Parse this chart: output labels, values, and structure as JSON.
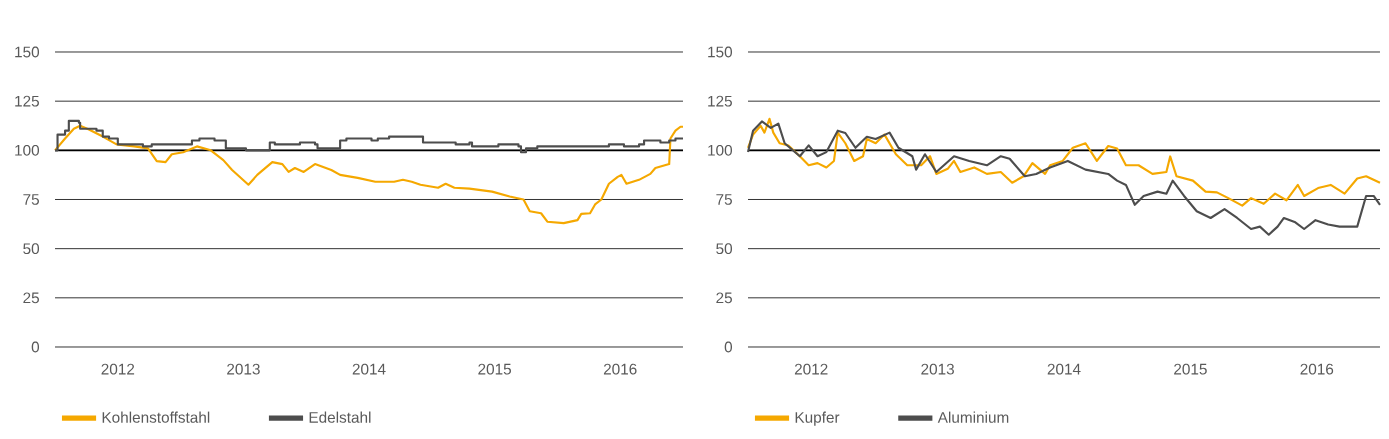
{
  "chart_data": [
    {
      "type": "line",
      "xlim": [
        2012,
        2017
      ],
      "ylim": [
        0,
        150
      ],
      "yticks": [
        0,
        25,
        50,
        75,
        100,
        125,
        150
      ],
      "xticks": [
        {
          "value": 2012.5,
          "label": "2012"
        },
        {
          "value": 2013.5,
          "label": "2013"
        },
        {
          "value": 2014.5,
          "label": "2014"
        },
        {
          "value": 2015.5,
          "label": "2015"
        },
        {
          "value": 2016.5,
          "label": "2016"
        }
      ],
      "grid": "y",
      "legend": "bottom left",
      "ref_lines": [
        {
          "axis": "y",
          "value": 100,
          "color": "#000000"
        }
      ],
      "series": [
        {
          "name": "Kohlenstoffstahl",
          "color": "#f5a800",
          "x": [
            2012.0,
            2012.08,
            2012.15,
            2012.2,
            2012.27,
            2012.38,
            2012.49,
            2012.63,
            2012.74,
            2012.81,
            2012.88,
            2012.93,
            2013.02,
            2013.13,
            2013.24,
            2013.34,
            2013.41,
            2013.54,
            2013.61,
            2013.73,
            2013.81,
            2013.86,
            2013.91,
            2013.98,
            2014.07,
            2014.2,
            2014.27,
            2014.41,
            2014.55,
            2014.7,
            2014.77,
            2014.84,
            2014.91,
            2015.05,
            2015.11,
            2015.18,
            2015.3,
            2015.48,
            2015.62,
            2015.73,
            2015.78,
            2015.87,
            2015.92,
            2016.05,
            2016.16,
            2016.19,
            2016.26,
            2016.3,
            2016.35,
            2016.41,
            2016.48,
            2016.51,
            2016.55,
            2016.65,
            2016.74,
            2016.78,
            2016.89,
            2016.9,
            2016.94,
            2016.98,
            2017.0
          ],
          "values": [
            100,
            106,
            111,
            112.5,
            110.6,
            107,
            103,
            102,
            101,
            94.5,
            94,
            98,
            99,
            102,
            100,
            95,
            90,
            82.5,
            87.5,
            94,
            93,
            89,
            91,
            89,
            93,
            90,
            87.5,
            86,
            84,
            84,
            85,
            84,
            82.5,
            81,
            83,
            81,
            80.5,
            79,
            76.5,
            75,
            69,
            68,
            63.7,
            63,
            64.5,
            67.7,
            68,
            72.5,
            75,
            83,
            86.5,
            87.5,
            83,
            85,
            88,
            91,
            93,
            106,
            110,
            112,
            112
          ]
        },
        {
          "name": "Edelstahl",
          "type": "step",
          "color": "#4d4d4d",
          "x": [
            2012.0,
            2012.02,
            2012.08,
            2012.11,
            2012.19,
            2012.2,
            2012.27,
            2012.33,
            2012.38,
            2012.43,
            2012.5,
            2012.63,
            2012.7,
            2012.77,
            2013.09,
            2013.15,
            2013.27,
            2013.36,
            2013.52,
            2013.7,
            2013.71,
            2013.75,
            2013.84,
            2013.95,
            2014.07,
            2014.09,
            2014.23,
            2014.27,
            2014.32,
            2014.41,
            2014.52,
            2014.57,
            2014.66,
            2014.91,
            2014.93,
            2015.12,
            2015.19,
            2015.3,
            2015.32,
            2015.51,
            2015.53,
            2015.69,
            2015.71,
            2015.75,
            2015.84,
            2016.37,
            2016.41,
            2016.53,
            2016.65,
            2016.69,
            2016.8,
            2016.82,
            2016.89,
            2016.94,
            2017.0
          ],
          "values": [
            100,
            108,
            110,
            115,
            114,
            111,
            111,
            110,
            107,
            106,
            103,
            103,
            102,
            103,
            105,
            106,
            105,
            101,
            100,
            100,
            104,
            103,
            103,
            104,
            103,
            101,
            101,
            105,
            106,
            106,
            105,
            106,
            107,
            107,
            104,
            104,
            103,
            104,
            102,
            102,
            103,
            102,
            99,
            101,
            102,
            102,
            103,
            102,
            103,
            105,
            105,
            104,
            105,
            106,
            106
          ]
        }
      ]
    },
    {
      "type": "line",
      "xlim": [
        2012,
        2017
      ],
      "ylim": [
        0,
        150
      ],
      "yticks": [
        0,
        25,
        50,
        75,
        100,
        125,
        150
      ],
      "xticks": [
        {
          "value": 2012.5,
          "label": "2012"
        },
        {
          "value": 2013.5,
          "label": "2013"
        },
        {
          "value": 2014.5,
          "label": "2014"
        },
        {
          "value": 2015.5,
          "label": "2015"
        },
        {
          "value": 2016.5,
          "label": "2016"
        }
      ],
      "grid": "y",
      "legend": "bottom left",
      "ref_lines": [
        {
          "axis": "y",
          "value": 100,
          "color": "#000000"
        }
      ],
      "series": [
        {
          "name": "Kupfer",
          "color": "#f5a800",
          "x": [
            2012.0,
            2012.04,
            2012.1,
            2012.13,
            2012.17,
            2012.2,
            2012.25,
            2012.32,
            2012.41,
            2012.48,
            2012.55,
            2012.62,
            2012.68,
            2012.71,
            2012.77,
            2012.84,
            2012.91,
            2012.94,
            2013.01,
            2013.08,
            2013.17,
            2013.26,
            2013.37,
            2013.44,
            2013.49,
            2013.58,
            2013.63,
            2013.68,
            2013.79,
            2013.89,
            2014.0,
            2014.09,
            2014.18,
            2014.25,
            2014.35,
            2014.39,
            2014.49,
            2014.57,
            2014.67,
            2014.76,
            2014.85,
            2014.92,
            2014.99,
            2015.09,
            2015.2,
            2015.31,
            2015.34,
            2015.39,
            2015.52,
            2015.62,
            2015.71,
            2015.8,
            2015.91,
            2015.98,
            2016.08,
            2016.17,
            2016.26,
            2016.35,
            2016.4,
            2016.51,
            2016.61,
            2016.72,
            2016.82,
            2016.89,
            2017.0
          ],
          "values": [
            101.3,
            108,
            112.5,
            109,
            116,
            109,
            103.6,
            102.5,
            97,
            92.4,
            93.5,
            91.3,
            94.6,
            109,
            103.6,
            94.6,
            97,
            105.8,
            103.6,
            108,
            98,
            92.4,
            92.4,
            97,
            88,
            90.6,
            94.6,
            89,
            91.3,
            88,
            89,
            83.5,
            86.8,
            93.5,
            88,
            92.4,
            94.6,
            101.3,
            103.6,
            94.6,
            102.2,
            100.9,
            92.4,
            92.4,
            88,
            89,
            96.9,
            86.8,
            84.6,
            79,
            78.6,
            75.7,
            71.9,
            75.7,
            72.8,
            78,
            74.6,
            82.4,
            76.8,
            80.8,
            82.4,
            78,
            85.7,
            86.8,
            83.5
          ]
        },
        {
          "name": "Aluminium",
          "color": "#4d4d4d",
          "x": [
            2012.0,
            2012.04,
            2012.11,
            2012.18,
            2012.24,
            2012.29,
            2012.41,
            2012.48,
            2012.55,
            2012.62,
            2012.71,
            2012.77,
            2012.85,
            2012.94,
            2013.01,
            2013.12,
            2013.19,
            2013.3,
            2013.33,
            2013.4,
            2013.49,
            2013.63,
            2013.75,
            2013.89,
            2014.0,
            2014.07,
            2014.19,
            2014.28,
            2014.39,
            2014.53,
            2014.67,
            2014.85,
            2014.92,
            2014.99,
            2015.06,
            2015.13,
            2015.24,
            2015.31,
            2015.36,
            2015.45,
            2015.55,
            2015.66,
            2015.77,
            2015.87,
            2015.98,
            2016.05,
            2016.12,
            2016.19,
            2016.24,
            2016.33,
            2016.4,
            2016.49,
            2016.59,
            2016.68,
            2016.82,
            2016.89,
            2016.95,
            2017.0
          ],
          "values": [
            99.1,
            110,
            114.7,
            111.4,
            113.6,
            103.6,
            97,
            102.5,
            97,
            99.1,
            110,
            108.8,
            101.3,
            106.9,
            105.8,
            109,
            101.3,
            97,
            90.2,
            98,
            89,
            97,
            94.6,
            92.4,
            97,
            95.7,
            86.8,
            88,
            91.3,
            94.6,
            90.2,
            88,
            84.6,
            82.4,
            72.3,
            76.8,
            79,
            77.9,
            84.6,
            76.8,
            69,
            65.6,
            70.1,
            65.6,
            60,
            61.2,
            57.1,
            61.2,
            65.6,
            63.4,
            60,
            64.5,
            62.3,
            61.2,
            61.2,
            76.8,
            76.8,
            72.3
          ]
        }
      ]
    }
  ]
}
